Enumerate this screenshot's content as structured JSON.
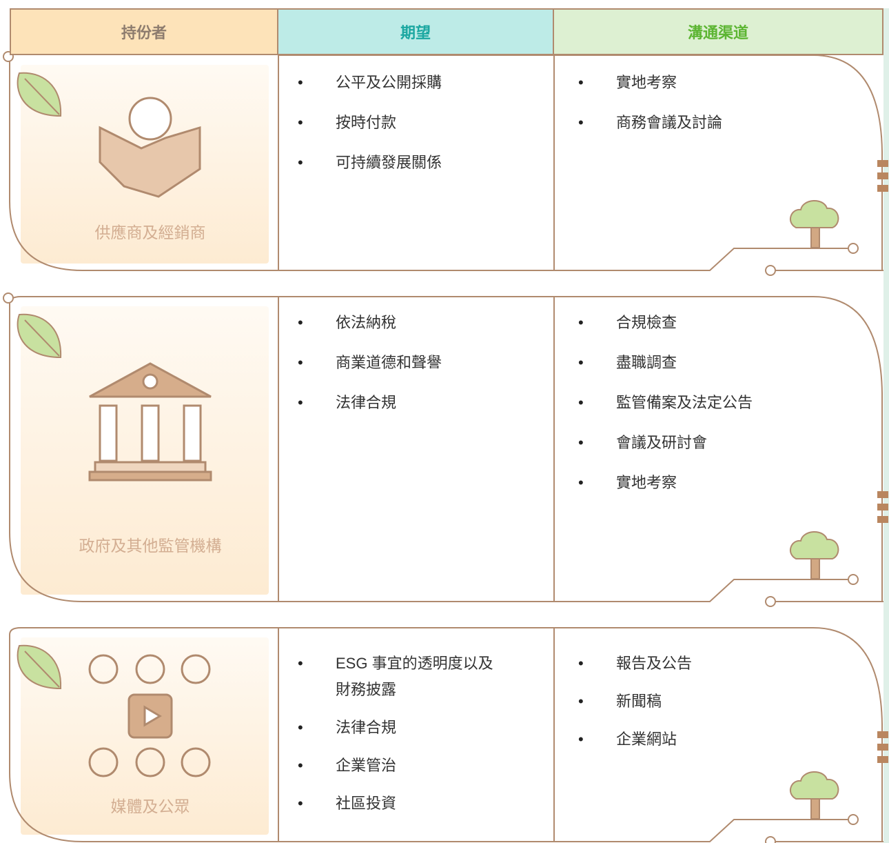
{
  "header": {
    "stakeholder": "持份者",
    "expectations": "期望",
    "channels": "溝通渠道"
  },
  "rows": [
    {
      "stakeholder": "供應商及經銷商",
      "expectations": [
        "公平及公開採購",
        "按時付款",
        "可持續發展關係"
      ],
      "channels": [
        "實地考察",
        "商務會議及討論"
      ]
    },
    {
      "stakeholder": "政府及其他監管機構",
      "expectations": [
        "依法納稅",
        "商業道德和聲譽",
        "法律合規"
      ],
      "channels": [
        "合規檢查",
        "盡職調查",
        "監管備案及法定公告",
        "會議及研討會",
        "實地考察"
      ]
    },
    {
      "stakeholder": "媒體及公眾",
      "expectations": [
        "ESG 事宜的透明度以及財務披露",
        "法律合規",
        "企業管治",
        "社區投資"
      ],
      "channels": [
        "報告及公告",
        "新聞稿",
        "企業網站"
      ]
    }
  ]
}
